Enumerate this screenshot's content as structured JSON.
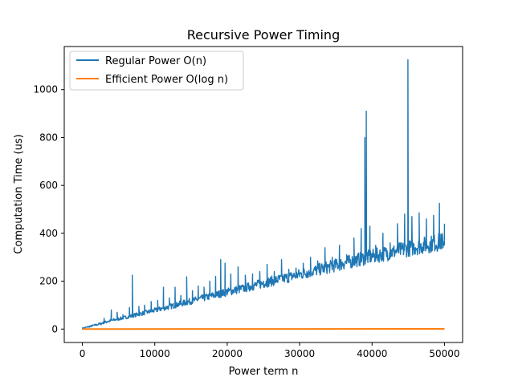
{
  "chart_data": {
    "type": "line",
    "title": "Recursive Power Timing",
    "xlabel": "Power term n",
    "ylabel": "Computation Time (us)",
    "xlim": [
      -2500,
      52500
    ],
    "ylim": [
      -56,
      1180
    ],
    "xticks": [
      0,
      10000,
      20000,
      30000,
      40000,
      50000
    ],
    "yticks": [
      0,
      200,
      400,
      600,
      800,
      1000
    ],
    "grid": false,
    "legend_position": "top-left",
    "series": [
      {
        "name": "Regular Power O(n)",
        "color": "#1f77b4",
        "baseline": [
          [
            0,
            0
          ],
          [
            2000,
            14
          ],
          [
            4000,
            30
          ],
          [
            6000,
            42
          ],
          [
            8000,
            55
          ],
          [
            10000,
            68
          ],
          [
            12000,
            82
          ],
          [
            14000,
            96
          ],
          [
            16000,
            110
          ],
          [
            18000,
            124
          ],
          [
            20000,
            138
          ],
          [
            22000,
            150
          ],
          [
            24000,
            164
          ],
          [
            26000,
            178
          ],
          [
            28000,
            190
          ],
          [
            30000,
            204
          ],
          [
            32000,
            218
          ],
          [
            34000,
            232
          ],
          [
            36000,
            246
          ],
          [
            38000,
            260
          ],
          [
            40000,
            272
          ],
          [
            42000,
            284
          ],
          [
            44000,
            296
          ],
          [
            46000,
            308
          ],
          [
            48000,
            318
          ],
          [
            50000,
            330
          ]
        ],
        "points": [
          [
            0,
            0
          ],
          [
            2600,
            18
          ],
          [
            3000,
            45
          ],
          [
            3400,
            32
          ],
          [
            4000,
            80
          ],
          [
            4300,
            38
          ],
          [
            4800,
            70
          ],
          [
            5200,
            40
          ],
          [
            5600,
            60
          ],
          [
            6000,
            45
          ],
          [
            6500,
            90
          ],
          [
            6900,
            225
          ],
          [
            7000,
            60
          ],
          [
            7400,
            55
          ],
          [
            7800,
            95
          ],
          [
            8200,
            62
          ],
          [
            8600,
            100
          ],
          [
            9000,
            70
          ],
          [
            9500,
            115
          ],
          [
            9900,
            78
          ],
          [
            10400,
            120
          ],
          [
            10800,
            88
          ],
          [
            11200,
            175
          ],
          [
            11600,
            92
          ],
          [
            12000,
            130
          ],
          [
            12400,
            98
          ],
          [
            12800,
            175
          ],
          [
            13200,
            105
          ],
          [
            13600,
            140
          ],
          [
            14000,
            112
          ],
          [
            14400,
            218
          ],
          [
            14800,
            118
          ],
          [
            15200,
            160
          ],
          [
            15600,
            125
          ],
          [
            16000,
            180
          ],
          [
            16400,
            135
          ],
          [
            16800,
            175
          ],
          [
            17200,
            142
          ],
          [
            17600,
            200
          ],
          [
            18000,
            150
          ],
          [
            18400,
            220
          ],
          [
            18800,
            155
          ],
          [
            19100,
            290
          ],
          [
            19300,
            160
          ],
          [
            19700,
            275
          ],
          [
            20000,
            165
          ],
          [
            20500,
            230
          ],
          [
            21000,
            172
          ],
          [
            21500,
            260
          ],
          [
            22000,
            178
          ],
          [
            22500,
            225
          ],
          [
            23000,
            185
          ],
          [
            23500,
            230
          ],
          [
            24000,
            192
          ],
          [
            24500,
            240
          ],
          [
            25000,
            200
          ],
          [
            25500,
            270
          ],
          [
            26000,
            205
          ],
          [
            26500,
            240
          ],
          [
            27000,
            212
          ],
          [
            27500,
            290
          ],
          [
            28000,
            220
          ],
          [
            28500,
            250
          ],
          [
            29000,
            228
          ],
          [
            29500,
            255
          ],
          [
            30000,
            235
          ],
          [
            30500,
            275
          ],
          [
            31000,
            240
          ],
          [
            31500,
            300
          ],
          [
            32000,
            248
          ],
          [
            32500,
            285
          ],
          [
            33000,
            255
          ],
          [
            33500,
            340
          ],
          [
            34000,
            262
          ],
          [
            34500,
            300
          ],
          [
            35000,
            268
          ],
          [
            35500,
            350
          ],
          [
            36000,
            275
          ],
          [
            36500,
            310
          ],
          [
            37000,
            282
          ],
          [
            37500,
            380
          ],
          [
            38000,
            288
          ],
          [
            38500,
            420
          ],
          [
            38900,
            300
          ],
          [
            39000,
            800
          ],
          [
            39100,
            310
          ],
          [
            39200,
            910
          ],
          [
            39300,
            320
          ],
          [
            39700,
            430
          ],
          [
            40000,
            305
          ],
          [
            40500,
            350
          ],
          [
            41000,
            310
          ],
          [
            41500,
            400
          ],
          [
            42000,
            318
          ],
          [
            42500,
            360
          ],
          [
            43000,
            325
          ],
          [
            43500,
            440
          ],
          [
            44000,
            330
          ],
          [
            44500,
            480
          ],
          [
            44800,
            340
          ],
          [
            44950,
            1125
          ],
          [
            45100,
            345
          ],
          [
            45500,
            470
          ],
          [
            46000,
            340
          ],
          [
            46500,
            485
          ],
          [
            47000,
            335
          ],
          [
            47500,
            460
          ],
          [
            48000,
            330
          ],
          [
            48500,
            475
          ],
          [
            49000,
            325
          ],
          [
            49300,
            525
          ],
          [
            49600,
            335
          ],
          [
            50000,
            440
          ]
        ]
      },
      {
        "name": "Efficient Power O(log n)",
        "color": "#ff7f0e",
        "points": [
          [
            0,
            0
          ],
          [
            50000,
            1
          ]
        ]
      }
    ]
  }
}
